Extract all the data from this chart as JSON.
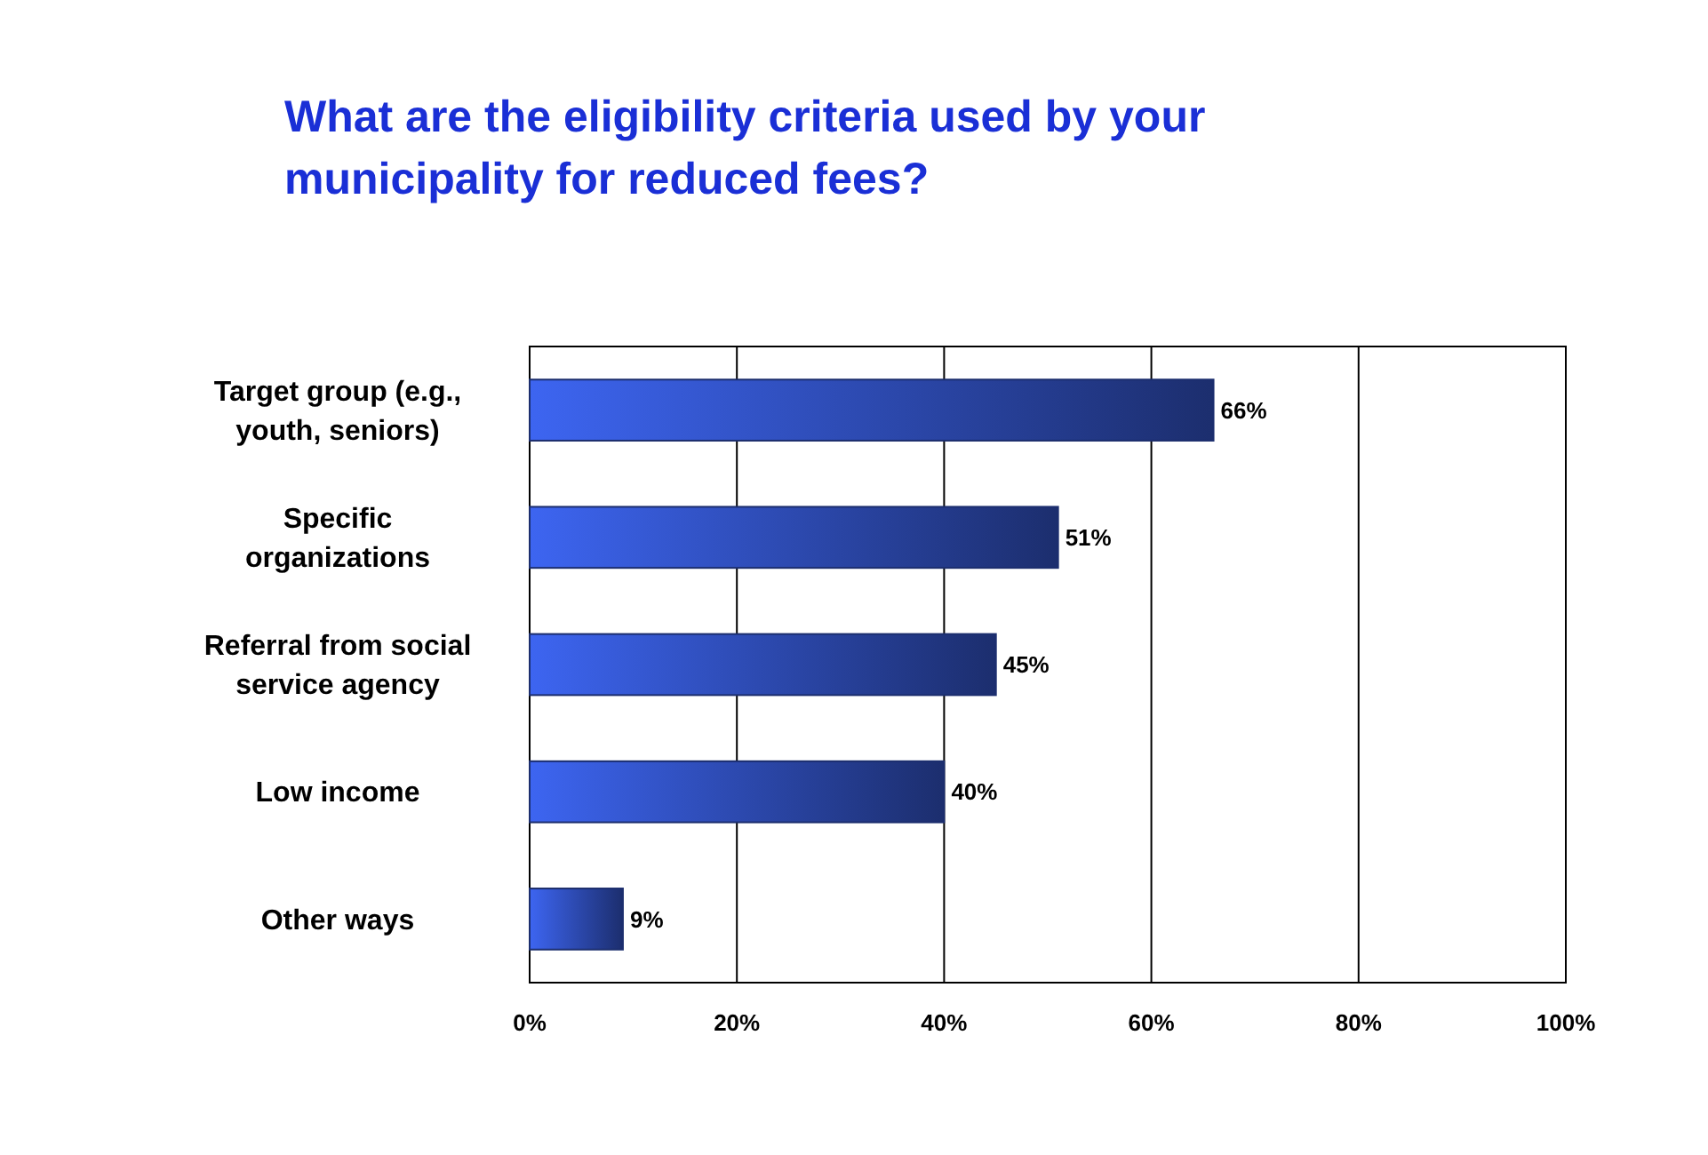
{
  "chart_data": {
    "type": "bar",
    "orientation": "horizontal",
    "title": "What are the eligibility criteria used by your municipality for reduced fees?",
    "categories": [
      "Target group (e.g., youth, seniors)",
      "Specific organizations",
      "Referral from social service agency",
      "Low income",
      "Other ways"
    ],
    "values": [
      66,
      51,
      45,
      40,
      9
    ],
    "value_labels": [
      "66%",
      "51%",
      "45%",
      "40%",
      "9%"
    ],
    "color": "#1c2e6e",
    "xlim": [
      0,
      100
    ],
    "xticks": [
      {
        "value": 0,
        "label": "0%"
      },
      {
        "value": 20,
        "label": "20%"
      },
      {
        "value": 40,
        "label": "40%"
      },
      {
        "value": 60,
        "label": "60%"
      },
      {
        "value": 80,
        "label": "80%"
      },
      {
        "value": 100,
        "label": "100%"
      }
    ],
    "grid": "x"
  }
}
